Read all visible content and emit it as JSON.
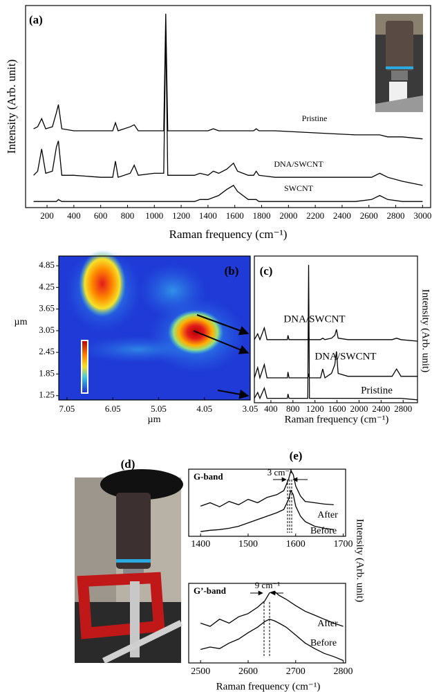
{
  "chart_data": [
    {
      "type": "line",
      "label": "(a)",
      "xlabel": "Raman frequency (cm⁻¹)",
      "ylabel": "Intensity (Arb. unit)",
      "xlim": [
        40,
        3060
      ],
      "ylim": [
        0,
        100
      ],
      "xticks": [
        200,
        400,
        600,
        800,
        1000,
        1200,
        1400,
        1600,
        1800,
        2000,
        2200,
        2400,
        2600,
        2800,
        3000
      ],
      "x": [
        100,
        130,
        160,
        190,
        240,
        270,
        285,
        310,
        400,
        600,
        690,
        710,
        730,
        820,
        850,
        880,
        1000,
        1070,
        1085,
        1100,
        1200,
        1300,
        1340,
        1400,
        1440,
        1480,
        1540,
        1590,
        1620,
        1700,
        1740,
        1760,
        1780,
        1900,
        2200,
        2500,
        2620,
        2680,
        2740,
        2850,
        3000
      ],
      "series": [
        {
          "name": "Pristine",
          "color": "#000000",
          "values": [
            39,
            40,
            44,
            39,
            40,
            47,
            51,
            39,
            38,
            38,
            38,
            42,
            38,
            40,
            41,
            38,
            38,
            38,
            96,
            38,
            38,
            38,
            38,
            38,
            39,
            38,
            38,
            38,
            38,
            38,
            38,
            39,
            38,
            38,
            37,
            36,
            36,
            36,
            35,
            35,
            34
          ]
        },
        {
          "name": "DNA/SWCNT",
          "color": "#000000",
          "values": [
            16,
            18,
            29,
            17,
            18,
            30,
            33,
            16,
            16,
            15,
            15,
            23,
            15,
            17,
            21,
            16,
            17,
            17,
            89,
            16,
            16,
            16,
            17,
            16,
            18,
            17,
            19,
            22,
            18,
            16,
            16,
            18,
            16,
            15,
            15,
            15,
            15,
            17,
            15,
            13,
            11
          ]
        },
        {
          "name": "SWCNT",
          "color": "#000000",
          "values": [
            3,
            3,
            3,
            3,
            3,
            3,
            4,
            3,
            3,
            3,
            3,
            3,
            3,
            3,
            3,
            3,
            3,
            3,
            3,
            3,
            3,
            3,
            4,
            4,
            5,
            6,
            9,
            11,
            8,
            4,
            4,
            4,
            3,
            3,
            3,
            3,
            4,
            6,
            4,
            3,
            3
          ]
        }
      ]
    },
    {
      "type": "map",
      "label": "(b)",
      "xlabel": "µm",
      "ylabel": "µm",
      "xlim": [
        7.23,
        3.05
      ],
      "ylim": [
        1.13,
        5.12
      ],
      "xticks": [
        7.05,
        6.05,
        5.05,
        4.05,
        3.05
      ],
      "yticks": [
        4.85,
        4.25,
        3.65,
        3.05,
        2.45,
        1.85,
        1.25
      ]
    },
    {
      "type": "line",
      "label": "(c)",
      "xlabel": "Raman frequency (cm⁻¹)",
      "ylabel": "Intensity (Arb. unit)",
      "xlim": [
        100,
        3060
      ],
      "ylim": [
        0,
        100
      ],
      "xticks": [
        400,
        800,
        1200,
        1600,
        2000,
        2400,
        2800
      ],
      "x": [
        100,
        160,
        200,
        280,
        330,
        500,
        700,
        710,
        730,
        1000,
        1070,
        1085,
        1100,
        1300,
        1340,
        1380,
        1500,
        1560,
        1590,
        1620,
        1800,
        2200,
        2600,
        2680,
        2760,
        3060
      ],
      "series": [
        {
          "name": "DNA/SWCNT",
          "color": "#000000",
          "values": [
            43,
            47,
            43,
            51,
            43,
            43,
            43,
            46,
            43,
            43,
            43,
            45,
            43,
            43,
            44,
            43,
            44,
            46,
            50,
            44,
            43,
            43,
            43,
            44,
            43,
            42
          ]
        },
        {
          "name": "DNA/SWCNT",
          "color": "#000000",
          "values": [
            17,
            24,
            17,
            26,
            17,
            17,
            17,
            21,
            17,
            17,
            17,
            19,
            17,
            17,
            23,
            17,
            20,
            26,
            35,
            20,
            18,
            18,
            18,
            23,
            18,
            18
          ]
        },
        {
          "name": "Pristine",
          "color": "#000000",
          "values": [
            3,
            7,
            3,
            10,
            3,
            3,
            3,
            6,
            3,
            3,
            3,
            94,
            3,
            3,
            3,
            3,
            3,
            3,
            3,
            3,
            3,
            3,
            3,
            3,
            3,
            2
          ]
        }
      ]
    },
    {
      "type": "line",
      "label": "(e)",
      "annotation": "G-band",
      "note": "3 cm⁻¹",
      "ylabel": "Intensity (Arb. unit)",
      "xlim": [
        1375,
        1705
      ],
      "ylim": [
        0,
        100
      ],
      "xticks": [
        1400,
        1500,
        1600,
        1700
      ],
      "x": [
        1400,
        1420,
        1440,
        1460,
        1480,
        1500,
        1520,
        1540,
        1560,
        1575,
        1585,
        1590,
        1595,
        1600,
        1610,
        1620,
        1640,
        1660,
        1680
      ],
      "series": [
        {
          "name": "After",
          "color": "#000000",
          "values": [
            45,
            50,
            44,
            52,
            47,
            55,
            50,
            58,
            62,
            68,
            85,
            98,
            92,
            75,
            60,
            52,
            50,
            48,
            47
          ]
        },
        {
          "name": "Before",
          "color": "#000000",
          "values": [
            7,
            9,
            10,
            12,
            15,
            20,
            25,
            30,
            35,
            40,
            55,
            68,
            62,
            45,
            30,
            22,
            15,
            12,
            10
          ]
        }
      ]
    },
    {
      "type": "line",
      "annotation": "G’-band",
      "note": "9 cm⁻¹",
      "xlabel": "Raman frequency (cm⁻¹)",
      "xlim": [
        2475,
        2805
      ],
      "ylim": [
        0,
        100
      ],
      "xticks": [
        2500,
        2600,
        2700,
        2800
      ],
      "x": [
        2500,
        2520,
        2540,
        2560,
        2580,
        2600,
        2620,
        2635,
        2645,
        2655,
        2665,
        2680,
        2700,
        2720,
        2740,
        2760,
        2780,
        2800
      ],
      "series": [
        {
          "name": "After",
          "color": "#000000",
          "values": [
            50,
            46,
            55,
            50,
            58,
            62,
            70,
            78,
            88,
            90,
            85,
            80,
            72,
            65,
            60,
            55,
            50,
            46
          ]
        },
        {
          "name": "Before",
          "color": "#000000",
          "values": [
            17,
            20,
            18,
            25,
            30,
            38,
            45,
            52,
            55,
            53,
            50,
            45,
            35,
            25,
            18,
            12,
            8,
            3
          ]
        }
      ]
    }
  ],
  "photo": {
    "label": "(d)"
  }
}
